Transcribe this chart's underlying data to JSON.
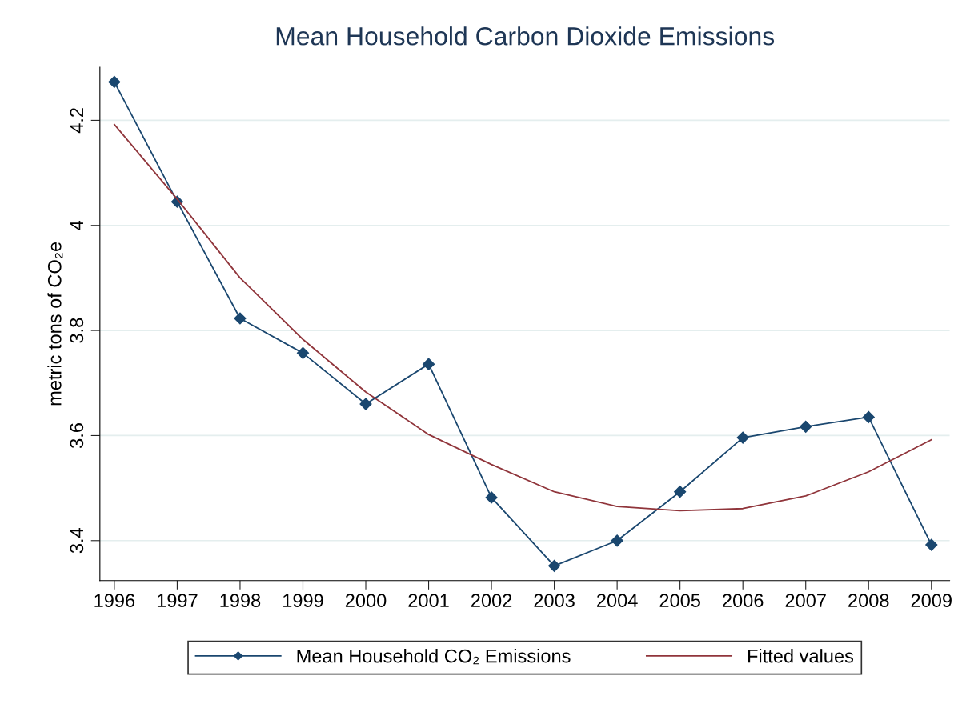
{
  "chart_data": {
    "type": "line",
    "title": "Mean Household Carbon Dioxide Emissions",
    "ylabel": "metric tons of CO₂e",
    "x": [
      1996,
      1997,
      1998,
      1999,
      2000,
      2001,
      2002,
      2003,
      2004,
      2005,
      2006,
      2007,
      2008,
      2009
    ],
    "series": [
      {
        "name": "Mean Household CO₂ Emissions",
        "color": "#1a476f",
        "marker": "diamond",
        "values": [
          4.273,
          4.045,
          3.823,
          3.757,
          3.66,
          3.736,
          3.482,
          3.352,
          3.4,
          3.493,
          3.596,
          3.617,
          3.635,
          3.392
        ]
      },
      {
        "name": "Fitted values",
        "color": "#90353b",
        "marker": "none",
        "values": [
          4.192,
          4.05,
          3.9,
          3.783,
          3.683,
          3.602,
          3.545,
          3.493,
          3.465,
          3.457,
          3.461,
          3.485,
          3.531,
          3.592
        ]
      }
    ],
    "xlim": [
      1995.77,
      2009.29
    ],
    "xticks": [
      1996,
      1997,
      1998,
      1999,
      2000,
      2001,
      2002,
      2003,
      2004,
      2005,
      2006,
      2007,
      2008,
      2009
    ],
    "ylim": [
      3.324,
      4.301
    ],
    "yticks": [
      {
        "value": 3.4,
        "label": "3.4"
      },
      {
        "value": 3.6,
        "label": "3.6"
      },
      {
        "value": 3.8,
        "label": "3.8"
      },
      {
        "value": 4.0,
        "label": "4"
      },
      {
        "value": 4.2,
        "label": "4.2"
      }
    ],
    "grid": "y",
    "legend": "bottom",
    "line_style": "solid"
  }
}
